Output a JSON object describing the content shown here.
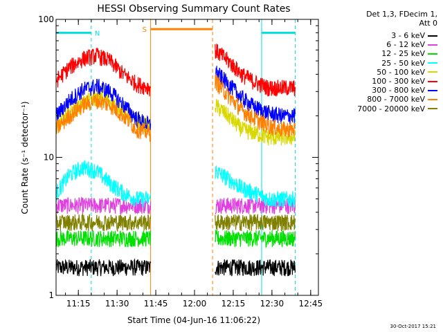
{
  "chart_data": {
    "type": "line",
    "title": "HESSI Observing Summary Count Rates",
    "xlabel": "Start Time (04-Jun-16 11:06:22)",
    "ylabel": "Count Rate (s⁻¹ detector⁻¹)",
    "y_scale": "log",
    "ylim": [
      1,
      100
    ],
    "y_tick_labels": [
      "1",
      "10",
      "100"
    ],
    "x_range": [
      "11:06:22",
      "12:48"
    ],
    "x_tick_labels": [
      "11:15",
      "11:30",
      "11:45",
      "12:00",
      "12:15",
      "12:30",
      "12:45"
    ],
    "x_ticks": [
      "11:15",
      "11:30",
      "11:45",
      "12:00",
      "12:15",
      "12:30",
      "12:45"
    ],
    "legend_header": [
      "Det 1,3, FDecim 1,",
      "Att 0"
    ],
    "legend_placement": "right",
    "markers": [
      {
        "label": "N",
        "start": "11:06:22",
        "end": "11:20",
        "color": "#00e0e0",
        "level": 80
      },
      {
        "label": "S",
        "start": "11:43",
        "end": "12:07",
        "color": "#ff8000",
        "level": 85
      },
      {
        "label": "",
        "start": "12:26",
        "end": "12:39",
        "color": "#00e0e0",
        "level": 80
      }
    ],
    "vertical_lines": [
      {
        "time": "11:20",
        "style": "dashed",
        "color": "#00e0e0"
      },
      {
        "time": "11:43",
        "style": "solid",
        "color": "#ff8000"
      },
      {
        "time": "12:07",
        "style": "dashed",
        "color": "#ff8000"
      },
      {
        "time": "12:26",
        "style": "solid",
        "color": "#00e0e0"
      },
      {
        "time": "12:39",
        "style": "dashed",
        "color": "#00e0e0"
      }
    ],
    "segments": [
      {
        "start": "11:06:22",
        "end": "11:43"
      },
      {
        "start": "12:08",
        "end": "12:39"
      }
    ],
    "series": [
      {
        "name": "3 - 6 keV",
        "color": "#000000",
        "seg1": [
          1.6,
          1.6,
          1.6,
          1.6,
          1.6,
          1.6,
          1.6,
          1.6
        ],
        "seg2": [
          1.6,
          1.6,
          1.6,
          1.6,
          1.6,
          1.6,
          1.6
        ]
      },
      {
        "name": "6 - 12 keV",
        "color": "#e040e0",
        "seg1": [
          4.5,
          4.5,
          4.5,
          4.5,
          4.5,
          4.5,
          4.5,
          4.5
        ],
        "seg2": [
          4.5,
          4.5,
          4.5,
          4.5,
          4.5,
          4.5,
          4.5
        ]
      },
      {
        "name": "12 - 25 keV",
        "color": "#00e000",
        "seg1": [
          2.6,
          2.6,
          2.6,
          2.6,
          2.6,
          2.6,
          2.6,
          2.6
        ],
        "seg2": [
          2.6,
          2.6,
          2.6,
          2.6,
          2.6,
          2.6,
          2.6
        ]
      },
      {
        "name": "25 - 50 keV",
        "color": "#00ffff",
        "seg1": [
          5.5,
          7.5,
          8.5,
          8.0,
          6.5,
          5.5,
          5.0,
          5.0
        ],
        "seg2": [
          8.0,
          7.0,
          6.0,
          5.5,
          5.0,
          5.0,
          5.0
        ]
      },
      {
        "name": "50 - 100 keV",
        "color": "#d8d800",
        "seg1": [
          17,
          21,
          25,
          27,
          26,
          22,
          18,
          17
        ],
        "seg2": [
          24,
          20,
          16,
          15,
          14,
          14,
          14
        ]
      },
      {
        "name": "100 - 300 keV",
        "color": "#ff0000",
        "seg1": [
          36,
          45,
          52,
          55,
          50,
          40,
          34,
          32
        ],
        "seg2": [
          60,
          50,
          40,
          35,
          32,
          32,
          32
        ]
      },
      {
        "name": "300 - 800 keV",
        "color": "#0000ff",
        "seg1": [
          20,
          26,
          31,
          33,
          30,
          24,
          19,
          17
        ],
        "seg2": [
          42,
          34,
          27,
          23,
          21,
          20,
          20
        ]
      },
      {
        "name": "800 - 7000 keV",
        "color": "#ff8000",
        "seg1": [
          16,
          20,
          24,
          26,
          24,
          20,
          16,
          15
        ],
        "seg2": [
          36,
          28,
          22,
          19,
          17,
          16,
          16
        ]
      },
      {
        "name": "7000 - 20000 keV",
        "color": "#808000",
        "seg1": [
          3.4,
          3.4,
          3.4,
          3.4,
          3.4,
          3.4,
          3.4,
          3.4
        ],
        "seg2": [
          3.4,
          3.4,
          3.4,
          3.4,
          3.4,
          3.4,
          3.4
        ]
      }
    ],
    "footer_date": "30-Oct-2017 15:21"
  }
}
